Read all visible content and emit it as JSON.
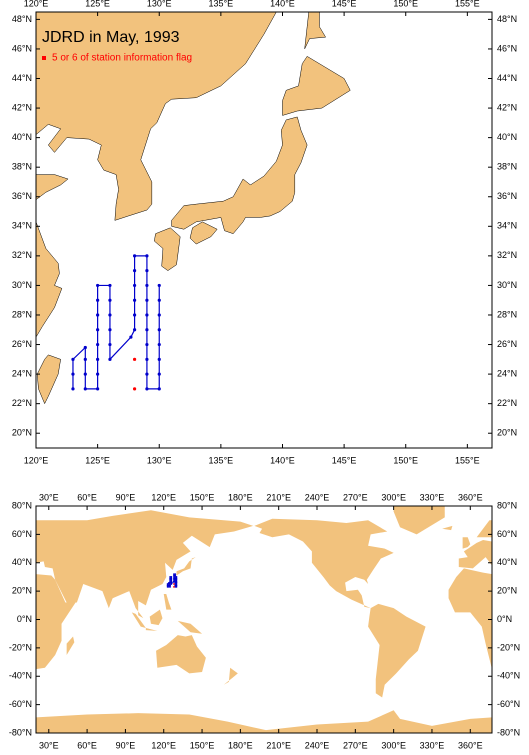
{
  "maps": [
    {
      "title": "JDRD in May, 1993",
      "legend": [
        {
          "label": "5 or 6 of station information flag",
          "color": "#ff0000"
        }
      ],
      "land_color": "#f2c27d",
      "track_color": "#0000cc",
      "xlim": [
        120,
        157
      ],
      "ylim": [
        19,
        48.5
      ],
      "xticks": [
        {
          "value": 120,
          "label": "120°E"
        },
        {
          "value": 125,
          "label": "125°E"
        },
        {
          "value": 130,
          "label": "130°E"
        },
        {
          "value": 135,
          "label": "135°E"
        },
        {
          "value": 140,
          "label": "140°E"
        },
        {
          "value": 145,
          "label": "145°E"
        },
        {
          "value": 150,
          "label": "150°E"
        },
        {
          "value": 155,
          "label": "155°E"
        }
      ],
      "yticks": [
        {
          "value": 20,
          "label": "20°N"
        },
        {
          "value": 22,
          "label": "22°N"
        },
        {
          "value": 24,
          "label": "24°N"
        },
        {
          "value": 26,
          "label": "26°N"
        },
        {
          "value": 28,
          "label": "28°N"
        },
        {
          "value": 30,
          "label": "30°N"
        },
        {
          "value": 32,
          "label": "32°N"
        },
        {
          "value": 34,
          "label": "34°N"
        },
        {
          "value": 36,
          "label": "36°N"
        },
        {
          "value": 38,
          "label": "38°N"
        },
        {
          "value": 40,
          "label": "40°N"
        },
        {
          "value": 42,
          "label": "42°N"
        },
        {
          "value": 44,
          "label": "44°N"
        },
        {
          "value": 46,
          "label": "46°N"
        },
        {
          "value": 48,
          "label": "48°N"
        }
      ]
    },
    {
      "land_color": "#f2c27d",
      "track_color": "#0000cc",
      "xlim": [
        20,
        377
      ],
      "ylim": [
        -80,
        80
      ],
      "xticks": [
        {
          "value": 30,
          "label": "30°E"
        },
        {
          "value": 60,
          "label": "60°E"
        },
        {
          "value": 90,
          "label": "90°E"
        },
        {
          "value": 120,
          "label": "120°E"
        },
        {
          "value": 150,
          "label": "150°E"
        },
        {
          "value": 180,
          "label": "180°E"
        },
        {
          "value": 210,
          "label": "210°E"
        },
        {
          "value": 240,
          "label": "240°E"
        },
        {
          "value": 270,
          "label": "270°E"
        },
        {
          "value": 300,
          "label": "300°E"
        },
        {
          "value": 330,
          "label": "330°E"
        },
        {
          "value": 360,
          "label": "360°E"
        }
      ],
      "yticks": [
        {
          "value": -80,
          "label": "-80°N"
        },
        {
          "value": -60,
          "label": "-60°N"
        },
        {
          "value": -40,
          "label": "-40°N"
        },
        {
          "value": -20,
          "label": "-20°N"
        },
        {
          "value": 0,
          "label": "0°N"
        },
        {
          "value": 20,
          "label": "20°N"
        },
        {
          "value": 40,
          "label": "40°N"
        },
        {
          "value": 60,
          "label": "60°N"
        },
        {
          "value": 80,
          "label": "80°N"
        }
      ]
    }
  ],
  "stations": {
    "lon": [
      123,
      123,
      123,
      124,
      124,
      124,
      124,
      125,
      125,
      125,
      125,
      125,
      125,
      125,
      125,
      126,
      126,
      126,
      126,
      126,
      126,
      127.7,
      128,
      128,
      128,
      128,
      128,
      128,
      129,
      129,
      129,
      129,
      129,
      129,
      129,
      129,
      129,
      129,
      130,
      130,
      130,
      130,
      130,
      130,
      130,
      130
    ],
    "lat": [
      23,
      24,
      25,
      25.8,
      25,
      24,
      23,
      23,
      24,
      25,
      26,
      27,
      28,
      29,
      30,
      30,
      29,
      28,
      27,
      26,
      25,
      26.5,
      27,
      28,
      29,
      30,
      31,
      32,
      32,
      31,
      30,
      29,
      28,
      27,
      26,
      25,
      24,
      23,
      23,
      24,
      25,
      26,
      27,
      28,
      29,
      30
    ]
  },
  "flagged_stations": {
    "lon": [
      128,
      128
    ],
    "lat": [
      23,
      25
    ]
  }
}
